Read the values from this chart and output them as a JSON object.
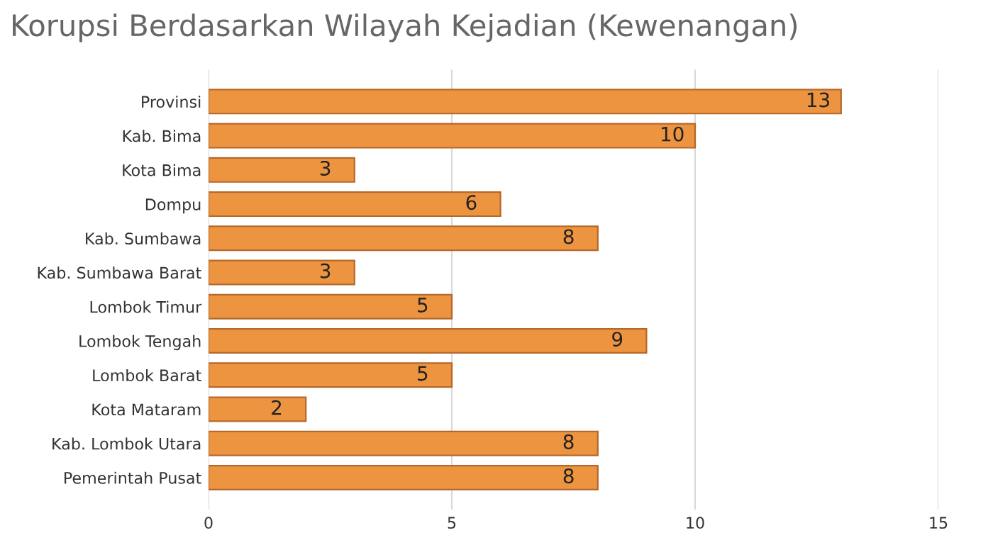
{
  "chart_data": {
    "type": "bar",
    "orientation": "horizontal",
    "title": "Korupsi Berdasarkan Wilayah Kejadian (Kewenangan)",
    "categories": [
      "Provinsi",
      "Kab. Bima",
      "Kota Bima",
      "Dompu",
      "Kab. Sumbawa",
      "Kab. Sumbawa Barat",
      "Lombok Timur",
      "Lombok Tengah",
      "Lombok Barat",
      "Kota Mataram",
      "Kab. Lombok Utara",
      "Pemerintah Pusat"
    ],
    "values": [
      13,
      10,
      3,
      6,
      8,
      3,
      5,
      9,
      5,
      2,
      8,
      8
    ],
    "color": "#ed9440",
    "xlim": [
      0,
      15
    ],
    "xticks": [
      0,
      5,
      10,
      15
    ],
    "grid": "x",
    "data_labels": true,
    "legend": false
  }
}
